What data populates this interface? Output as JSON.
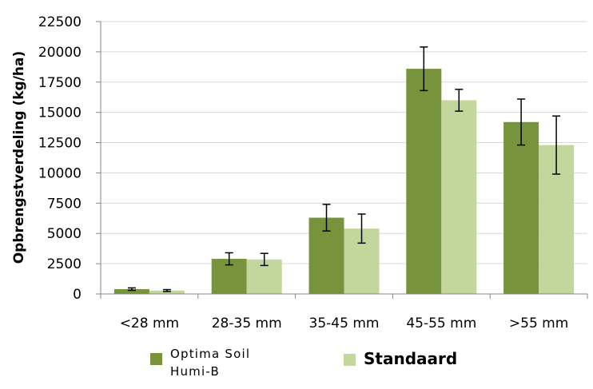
{
  "chart_data": {
    "type": "bar",
    "title": "",
    "xlabel": "",
    "ylabel": "Opbrengstverdeling (kg/ha)",
    "ylim": [
      0,
      22500
    ],
    "yticks": [
      "0",
      "2500",
      "5000",
      "7500",
      "10000",
      "12500",
      "15000",
      "17500",
      "20000",
      "22500"
    ],
    "grid": true,
    "legend_position": "bottom",
    "categories": [
      "<28 mm",
      "28-35 mm",
      "35-45 mm",
      "45-55 mm",
      ">55 mm"
    ],
    "series": [
      {
        "name": "Optima Soil Humi-B",
        "color": "#77933c",
        "values": [
          400,
          2900,
          6300,
          18600,
          14200
        ],
        "error": [
          100,
          500,
          1100,
          1800,
          1900
        ]
      },
      {
        "name": "Standaard",
        "color": "#c3d69b",
        "values": [
          280,
          2850,
          5400,
          16000,
          12300
        ],
        "error": [
          80,
          500,
          1200,
          900,
          2400
        ]
      }
    ]
  }
}
